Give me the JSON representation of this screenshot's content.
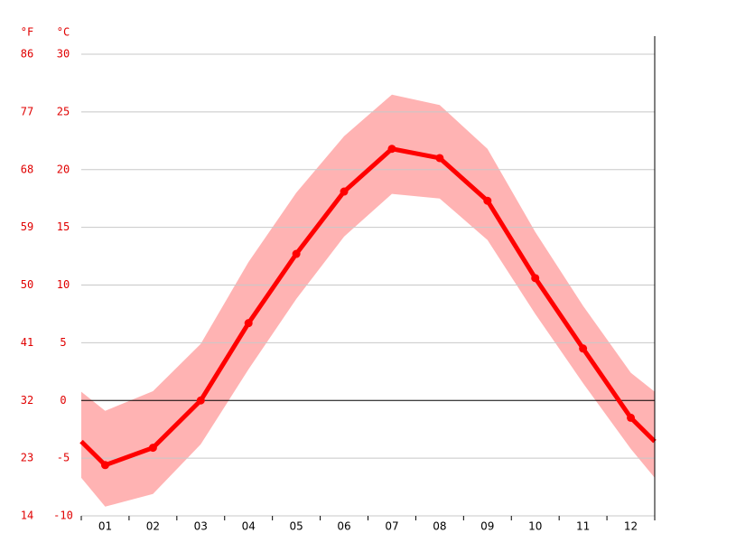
{
  "chart_data": {
    "type": "line",
    "y_unit": "°C",
    "y2_unit": "°F",
    "categories": [
      "01",
      "02",
      "03",
      "04",
      "05",
      "06",
      "07",
      "08",
      "09",
      "10",
      "11",
      "12"
    ],
    "series": [
      {
        "color": "#ff0000",
        "values": [
          -5.6,
          -4.1,
          0.0,
          6.7,
          12.7,
          18.1,
          21.8,
          21.0,
          17.3,
          10.6,
          4.5,
          -1.5
        ]
      }
    ],
    "range": {
      "color": "#ffb3b3",
      "high": [
        -0.9,
        0.8,
        4.9,
        12.0,
        18.0,
        22.9,
        26.5,
        25.6,
        21.8,
        14.6,
        8.2,
        2.4
      ],
      "low": [
        -9.2,
        -8.1,
        -3.8,
        2.7,
        8.8,
        14.2,
        17.9,
        17.5,
        13.9,
        7.5,
        1.5,
        -4.2
      ]
    },
    "ylim": [
      -10,
      30
    ],
    "yticks": [
      -10,
      -5,
      0,
      5,
      10,
      15,
      20,
      25,
      30
    ],
    "y2lim": [
      14,
      86
    ],
    "y2ticks": [
      14,
      23,
      32,
      41,
      50,
      59,
      68,
      77,
      86
    ],
    "grid": true
  }
}
